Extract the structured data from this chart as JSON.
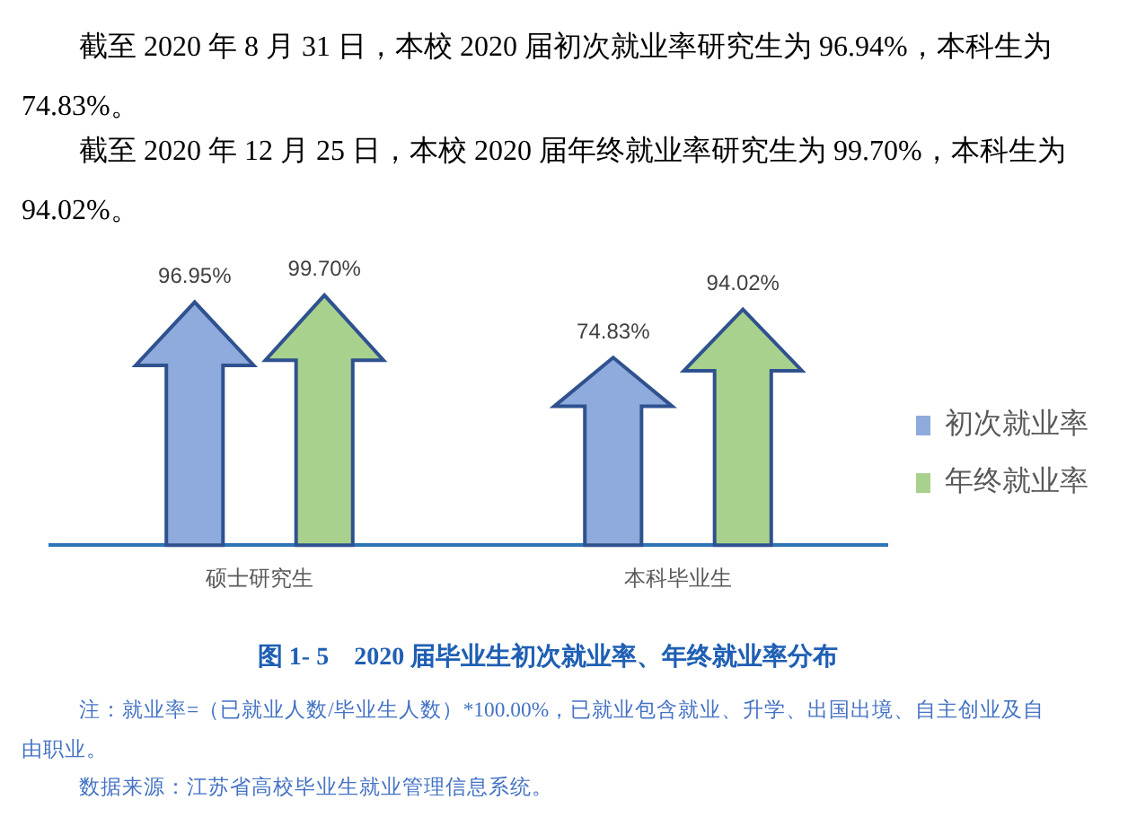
{
  "chart_data": {
    "type": "bar",
    "title": "图 1- 5    2020 届毕业生初次就业率、年终就业率分布",
    "categories": [
      "硕士研究生",
      "本科毕业生"
    ],
    "series": [
      {
        "name": "初次就业率",
        "color": "#8faadc",
        "values": [
          96.95,
          74.83
        ],
        "value_labels": [
          "96.95%",
          "74.83%"
        ]
      },
      {
        "name": "年终就业率",
        "color": "#a9d18e",
        "values": [
          99.7,
          94.02
        ],
        "value_labels": [
          "99.70%",
          "94.02%"
        ]
      }
    ],
    "legend": "right",
    "grid": false,
    "annotations": [
      "截至 2020 年 8 月 31 日，本校 2020 届初次就业率研究生为 96.94%，本科生为 74.83%。",
      "截至 2020 年 12 月 25 日，本校 2020 届年终就业率研究生为 99.70%，本科生为 94.02%。",
      "注：就业率=（已就业人数/毕业生人数）*100.00%，已就业包含就业、升学、出国出境、自主创业及自由职业。",
      "数据来源：江苏省高校毕业生就业管理信息系统。"
    ]
  }
}
